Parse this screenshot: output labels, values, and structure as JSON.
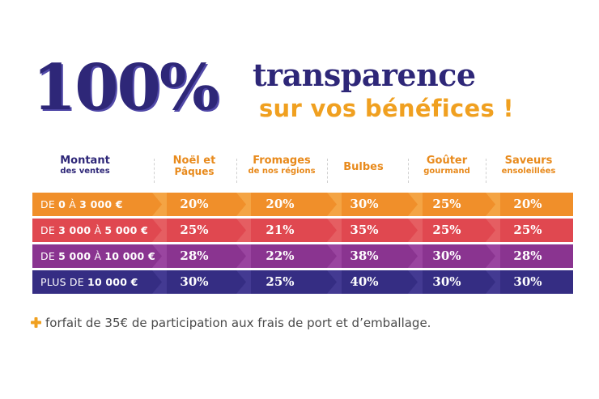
{
  "title": {
    "big": "100%",
    "line1": "transparence",
    "line2": "sur vos bénéfices !"
  },
  "colors": {
    "navy": "#2e2778",
    "orange": "#f0a020",
    "row1": "#f08f2a",
    "row2": "#e04850",
    "row3": "#8a3490",
    "row4": "#352d83"
  },
  "headers": {
    "first": {
      "l1": "Montant",
      "l2": "des ventes"
    },
    "cats": [
      {
        "l1": "Noël et",
        "l2": "Pâques"
      },
      {
        "l1": "Fromages",
        "l2": "de nos régions"
      },
      {
        "l1": "Bulbes",
        "l2": ""
      },
      {
        "l1": "Goûter",
        "l2": "gourmand"
      },
      {
        "l1": "Saveurs",
        "l2": "ensoleillées"
      }
    ]
  },
  "rows": [
    {
      "pre": "DE ",
      "a": "0",
      "mid": " À ",
      "b": "3 000 €",
      "values": [
        "20%",
        "20%",
        "30%",
        "25%",
        "20%"
      ]
    },
    {
      "pre": "DE ",
      "a": "3 000",
      "mid": " À ",
      "b": "5 000 €",
      "values": [
        "25%",
        "21%",
        "35%",
        "25%",
        "25%"
      ]
    },
    {
      "pre": "DE ",
      "a": "5 000",
      "mid": " À ",
      "b": "10 000 €",
      "values": [
        "28%",
        "22%",
        "38%",
        "30%",
        "28%"
      ]
    },
    {
      "pre": "PLUS DE ",
      "a": "",
      "mid": "",
      "b": "10 000 €",
      "values": [
        "30%",
        "25%",
        "40%",
        "30%",
        "30%"
      ]
    }
  ],
  "footnote": "forfait de 35€ de participation aux frais de port et d’emballage.",
  "icons": {
    "footnote": "plus-icon"
  }
}
